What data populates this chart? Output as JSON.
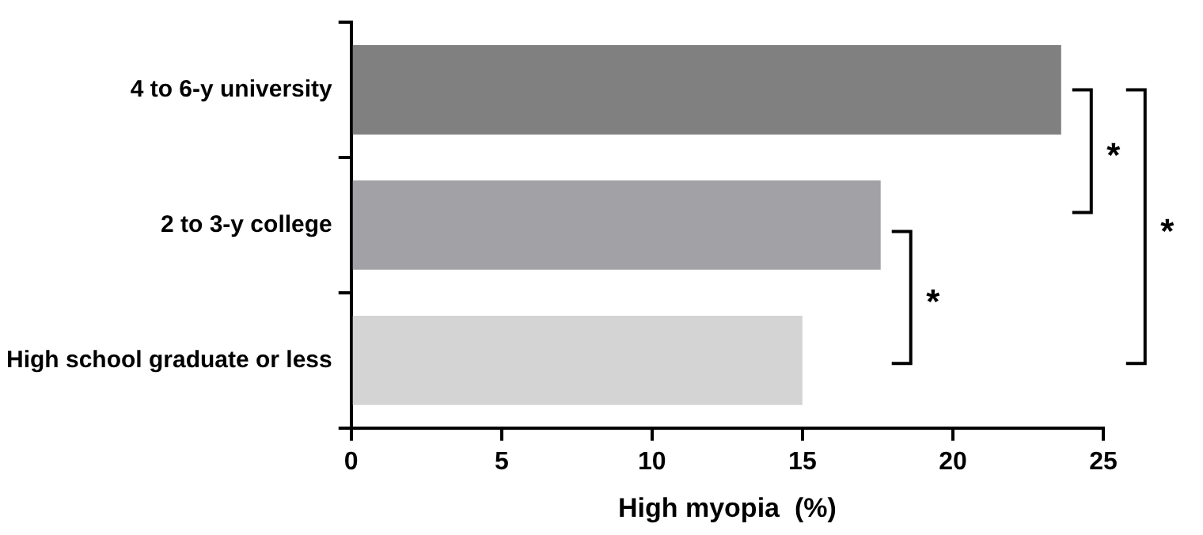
{
  "chart_data": {
    "type": "bar",
    "orientation": "horizontal",
    "categories": [
      "4 to 6-y university",
      "2 to 3-y college",
      "High school graduate or less"
    ],
    "values": [
      23.6,
      17.6,
      15.0
    ],
    "colors": [
      "#808080",
      "#a2a1a5",
      "#d4d4d4"
    ],
    "xlabel": "High myopia  (%)",
    "xlim": [
      0,
      25
    ],
    "xticks": [
      0,
      5,
      10,
      15,
      20,
      25
    ],
    "grid": false,
    "legend": false,
    "annotations": [
      "*",
      "*",
      "*"
    ]
  }
}
